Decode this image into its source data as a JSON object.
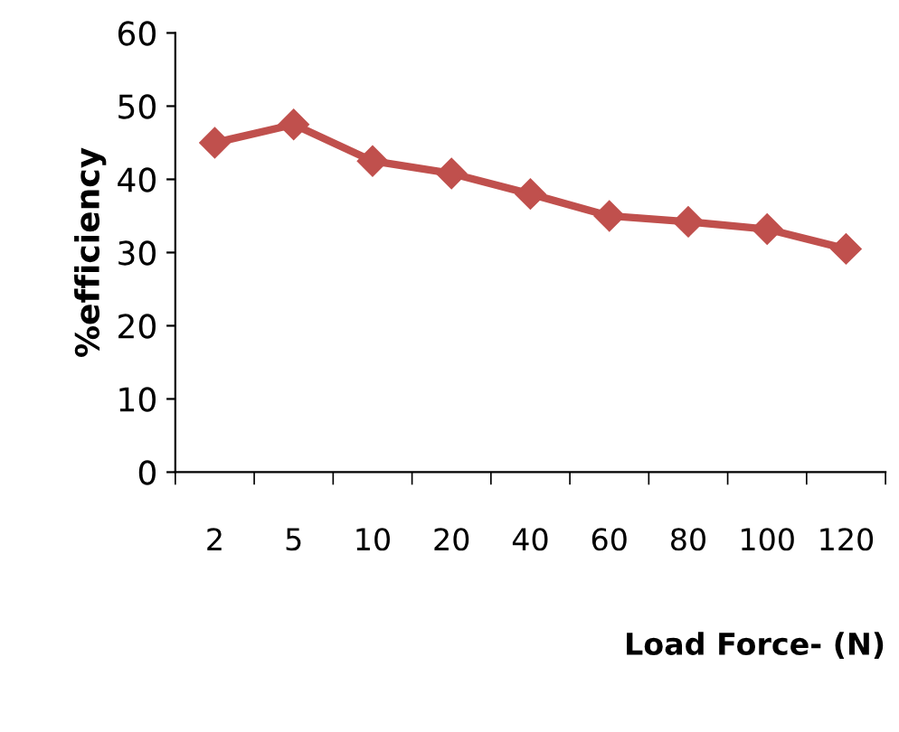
{
  "chart_data": {
    "type": "line",
    "xlabel": "Load Force- (N)",
    "ylabel": "%efficiency",
    "categories": [
      "2",
      "5",
      "10",
      "20",
      "40",
      "60",
      "80",
      "100",
      "120"
    ],
    "series": [
      {
        "color": "#c0504d",
        "values": [
          45.0,
          47.5,
          42.5,
          40.8,
          38.0,
          35.0,
          34.2,
          33.2,
          30.5
        ]
      }
    ],
    "ylim": [
      0,
      60
    ],
    "yticks": [
      0,
      10,
      20,
      30,
      40,
      50,
      60
    ],
    "grid": false,
    "legend": false,
    "marker": "diamond",
    "line_style": "solid"
  }
}
